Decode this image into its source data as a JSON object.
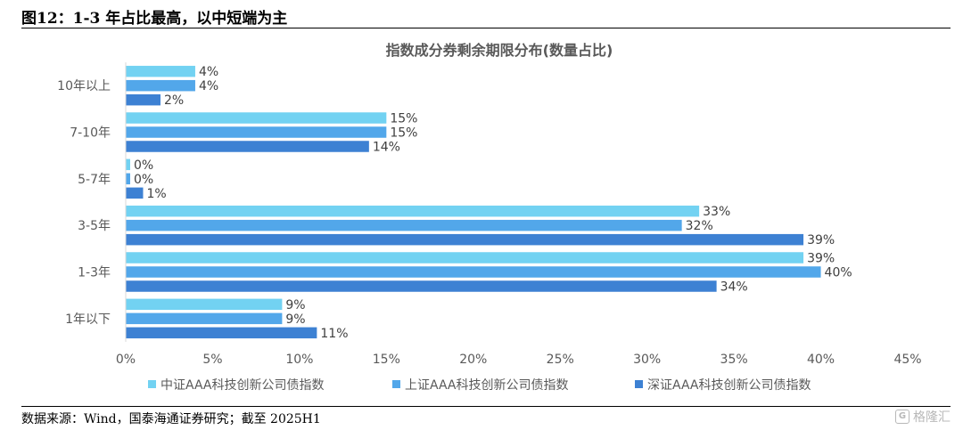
{
  "figure": {
    "title": "图12：1-3 年占比最高，以中短端为主",
    "source": "数据来源：Wind，国泰海通证券研究；截至 2025H1",
    "watermark": "格隆汇",
    "watermark_icon": "G"
  },
  "chart_data": {
    "type": "bar",
    "orientation": "horizontal",
    "title": "指数成分券剩余期限分布(数量占比)",
    "categories": [
      "10年以上",
      "7-10年",
      "5-7年",
      "3-5年",
      "1-3年",
      "1年以下"
    ],
    "series": [
      {
        "name": "中证AAA科技创新公司债指数",
        "color": "#72D2F2",
        "values": [
          4,
          15,
          0,
          33,
          39,
          9
        ],
        "labels": [
          "4%",
          "15%",
          "0%",
          "33%",
          "39%",
          "9%"
        ]
      },
      {
        "name": "上证AAA科技创新公司债指数",
        "color": "#52A7EA",
        "values": [
          4,
          15,
          0,
          32,
          40,
          9
        ],
        "labels": [
          "4%",
          "15%",
          "0%",
          "32%",
          "40%",
          "9%"
        ]
      },
      {
        "name": "深证AAA科技创新公司债指数",
        "color": "#3D81D3",
        "values": [
          2,
          14,
          1,
          39,
          34,
          11
        ],
        "labels": [
          "2%",
          "14%",
          "1%",
          "39%",
          "34%",
          "11%"
        ]
      }
    ],
    "xlim": [
      0,
      45
    ],
    "xticks": [
      0,
      5,
      10,
      15,
      20,
      25,
      30,
      35,
      40,
      45
    ],
    "xtick_labels": [
      "0%",
      "5%",
      "10%",
      "15%",
      "20%",
      "25%",
      "30%",
      "35%",
      "40%",
      "45%"
    ],
    "grid": false,
    "legend_position": "bottom"
  }
}
